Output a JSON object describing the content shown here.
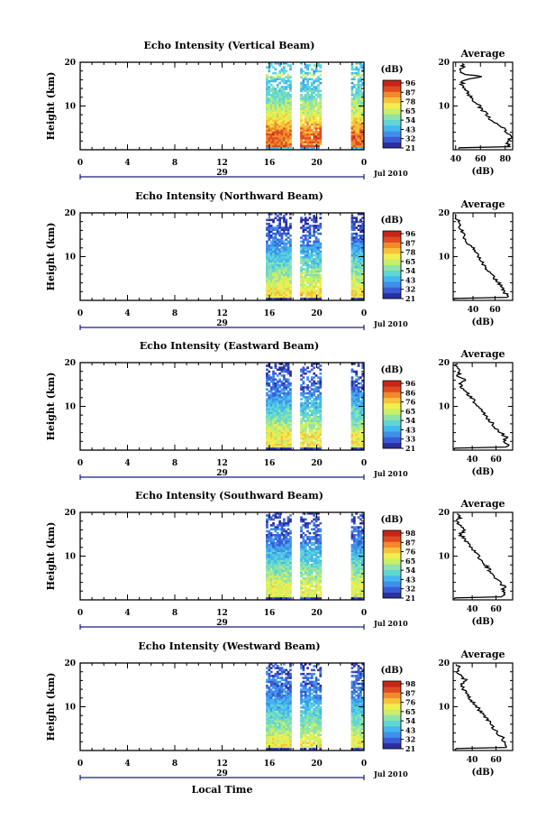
{
  "figure": {
    "xlabel": "Local Time",
    "date_label": "Jul 2010",
    "day_label": "29",
    "avg_title": "Average",
    "avg_xlabel": "(dB)",
    "cbar_unit": "(dB)",
    "ylabel": "Height (km)"
  },
  "colors": {
    "scale": [
      "#2b2fa0",
      "#3b5bd6",
      "#3f8fe8",
      "#45b7ee",
      "#5fd6d6",
      "#8fe3a8",
      "#c8ef6a",
      "#f2ee4e",
      "#f6c23c",
      "#f08a2c",
      "#e04a22",
      "#c82418"
    ],
    "axis": "#000000",
    "time_axis": "#1b1f7a"
  },
  "chart_data": [
    {
      "type": "heatmap",
      "title": "Echo Intensity (Vertical Beam)",
      "xlim": [
        0,
        24
      ],
      "ylim": [
        0,
        20
      ],
      "x_ticks": [
        "0",
        "4",
        "8",
        "12",
        "16",
        "20",
        "0"
      ],
      "y_ticks": [
        "20",
        "10"
      ],
      "colorbar": {
        "ticks": [
          "96",
          "87",
          "78",
          "65",
          "54",
          "43",
          "32",
          "21"
        ],
        "range": [
          21,
          96
        ]
      },
      "data_periods": [
        [
          15.7,
          17.8
        ],
        [
          18.6,
          20.3
        ],
        [
          22.9,
          23.8
        ]
      ],
      "profile_by_height": [
        {
          "h": 0.5,
          "v": 88
        },
        {
          "h": 1,
          "v": 82
        },
        {
          "h": 2,
          "v": 82
        },
        {
          "h": 3,
          "v": 85
        },
        {
          "h": 4,
          "v": 80
        },
        {
          "h": 5,
          "v": 78
        },
        {
          "h": 6,
          "v": 72
        },
        {
          "h": 7,
          "v": 68
        },
        {
          "h": 8,
          "v": 65
        },
        {
          "h": 9,
          "v": 62
        },
        {
          "h": 10,
          "v": 59
        },
        {
          "h": 11,
          "v": 55
        },
        {
          "h": 12,
          "v": 52
        },
        {
          "h": 13,
          "v": 50
        },
        {
          "h": 14,
          "v": 48
        },
        {
          "h": 15,
          "v": 45
        },
        {
          "h": 16,
          "v": 47
        },
        {
          "h": 16.8,
          "v": 62
        },
        {
          "h": 17.2,
          "v": 48
        },
        {
          "h": 18,
          "v": 44
        },
        {
          "h": 19,
          "v": 46
        },
        {
          "h": 20,
          "v": 44
        }
      ],
      "average": {
        "xlim": [
          38,
          86
        ],
        "xticks": [
          "40",
          "60",
          "80"
        ],
        "heights": [
          0.5,
          1,
          2,
          3,
          4,
          5,
          6,
          7,
          8,
          9,
          10,
          11,
          12,
          13,
          14,
          15,
          16,
          16.8,
          17.2,
          18,
          19,
          20
        ],
        "values": [
          88,
          82,
          82,
          85,
          80,
          78,
          72,
          68,
          65,
          62,
          59,
          55,
          52,
          50,
          48,
          45,
          47,
          62,
          48,
          44,
          46,
          44
        ]
      }
    },
    {
      "type": "heatmap",
      "title": "Echo Intensity (Northward Beam)",
      "xlim": [
        0,
        24
      ],
      "ylim": [
        0,
        20
      ],
      "x_ticks": [
        "0",
        "4",
        "8",
        "12",
        "16",
        "20",
        "0"
      ],
      "y_ticks": [
        "20",
        "10"
      ],
      "colorbar": {
        "ticks": [
          "96",
          "87",
          "78",
          "65",
          "54",
          "43",
          "32",
          "21"
        ],
        "range": [
          21,
          96
        ]
      },
      "data_periods": [
        [
          15.7,
          17.8
        ],
        [
          18.6,
          20.3
        ],
        [
          22.9,
          23.8
        ]
      ],
      "profile_by_height": [
        {
          "h": 0.5,
          "v": 70
        },
        {
          "h": 1,
          "v": 72
        },
        {
          "h": 2,
          "v": 68
        },
        {
          "h": 3,
          "v": 66
        },
        {
          "h": 4,
          "v": 63
        },
        {
          "h": 5,
          "v": 60
        },
        {
          "h": 6,
          "v": 56
        },
        {
          "h": 7,
          "v": 53
        },
        {
          "h": 8,
          "v": 50
        },
        {
          "h": 9,
          "v": 48
        },
        {
          "h": 10,
          "v": 45
        },
        {
          "h": 11,
          "v": 42
        },
        {
          "h": 12,
          "v": 40
        },
        {
          "h": 13,
          "v": 36
        },
        {
          "h": 14,
          "v": 33
        },
        {
          "h": 15,
          "v": 31
        },
        {
          "h": 16,
          "v": 30
        },
        {
          "h": 17,
          "v": 28
        },
        {
          "h": 18,
          "v": 27
        },
        {
          "h": 19,
          "v": 25
        },
        {
          "h": 20,
          "v": 24
        }
      ],
      "average": {
        "xlim": [
          22,
          76
        ],
        "xticks": [
          "40",
          "60"
        ],
        "heights": [
          0.5,
          1,
          2,
          3,
          4,
          5,
          6,
          7,
          8,
          9,
          10,
          11,
          12,
          13,
          14,
          15,
          16,
          17,
          18,
          19,
          20
        ],
        "values": [
          70,
          72,
          68,
          66,
          63,
          60,
          56,
          53,
          50,
          48,
          45,
          42,
          40,
          36,
          33,
          31,
          30,
          28,
          27,
          25,
          24
        ]
      }
    },
    {
      "type": "heatmap",
      "title": "Echo Intensity (Eastward Beam)",
      "xlim": [
        0,
        24
      ],
      "ylim": [
        0,
        20
      ],
      "x_ticks": [
        "0",
        "4",
        "8",
        "12",
        "16",
        "20",
        "0"
      ],
      "y_ticks": [
        "20",
        "10"
      ],
      "colorbar": {
        "ticks": [
          "96",
          "86",
          "76",
          "65",
          "54",
          "43",
          "33",
          "21"
        ],
        "range": [
          21,
          96
        ]
      },
      "data_periods": [
        [
          15.7,
          17.8
        ],
        [
          18.6,
          20.3
        ],
        [
          22.9,
          23.8
        ]
      ],
      "profile_by_height": [
        {
          "h": 0.5,
          "v": 64
        },
        {
          "h": 1,
          "v": 70
        },
        {
          "h": 2,
          "v": 66
        },
        {
          "h": 3,
          "v": 69
        },
        {
          "h": 4,
          "v": 64
        },
        {
          "h": 5,
          "v": 60
        },
        {
          "h": 6,
          "v": 57
        },
        {
          "h": 7,
          "v": 54
        },
        {
          "h": 8,
          "v": 51
        },
        {
          "h": 9,
          "v": 48
        },
        {
          "h": 10,
          "v": 45
        },
        {
          "h": 11,
          "v": 42
        },
        {
          "h": 12,
          "v": 39
        },
        {
          "h": 13,
          "v": 36
        },
        {
          "h": 14,
          "v": 32
        },
        {
          "h": 15,
          "v": 30
        },
        {
          "h": 16,
          "v": 34
        },
        {
          "h": 17,
          "v": 28
        },
        {
          "h": 18,
          "v": 30
        },
        {
          "h": 19,
          "v": 27
        },
        {
          "h": 20,
          "v": 26
        }
      ],
      "average": {
        "xlim": [
          24,
          74
        ],
        "xticks": [
          "40",
          "60"
        ],
        "heights": [
          0.5,
          1,
          2,
          3,
          4,
          5,
          6,
          7,
          8,
          9,
          10,
          11,
          12,
          13,
          14,
          15,
          16,
          17,
          18,
          19,
          20
        ],
        "values": [
          64,
          70,
          66,
          69,
          64,
          60,
          57,
          54,
          51,
          48,
          45,
          42,
          39,
          36,
          32,
          30,
          34,
          28,
          30,
          27,
          26
        ]
      }
    },
    {
      "type": "heatmap",
      "title": "Echo Intensity (Southward Beam)",
      "xlim": [
        0,
        24
      ],
      "ylim": [
        0,
        20
      ],
      "x_ticks": [
        "0",
        "4",
        "8",
        "12",
        "16",
        "20",
        "0"
      ],
      "y_ticks": [
        "20",
        "10"
      ],
      "colorbar": {
        "ticks": [
          "98",
          "87",
          "76",
          "65",
          "54",
          "43",
          "32",
          "21"
        ],
        "range": [
          21,
          98
        ]
      },
      "data_periods": [
        [
          15.7,
          17.8
        ],
        [
          18.6,
          20.3
        ],
        [
          22.9,
          23.8
        ]
      ],
      "profile_by_height": [
        {
          "h": 0.5,
          "v": 63
        },
        {
          "h": 1,
          "v": 68
        },
        {
          "h": 2,
          "v": 65
        },
        {
          "h": 3,
          "v": 67
        },
        {
          "h": 4,
          "v": 63
        },
        {
          "h": 5,
          "v": 60
        },
        {
          "h": 6,
          "v": 57
        },
        {
          "h": 7,
          "v": 54
        },
        {
          "h": 8,
          "v": 51
        },
        {
          "h": 9,
          "v": 48
        },
        {
          "h": 10,
          "v": 45
        },
        {
          "h": 11,
          "v": 42
        },
        {
          "h": 12,
          "v": 39
        },
        {
          "h": 13,
          "v": 36
        },
        {
          "h": 14,
          "v": 33
        },
        {
          "h": 15,
          "v": 30
        },
        {
          "h": 16,
          "v": 34
        },
        {
          "h": 17,
          "v": 29
        },
        {
          "h": 18,
          "v": 28
        },
        {
          "h": 19,
          "v": 30
        },
        {
          "h": 20,
          "v": 26
        }
      ],
      "average": {
        "xlim": [
          24,
          74
        ],
        "xticks": [
          "40",
          "60"
        ],
        "heights": [
          0.5,
          1,
          2,
          3,
          4,
          5,
          6,
          7,
          8,
          9,
          10,
          11,
          12,
          13,
          14,
          15,
          16,
          17,
          18,
          19,
          20
        ],
        "values": [
          63,
          68,
          65,
          67,
          63,
          60,
          57,
          54,
          51,
          48,
          45,
          42,
          39,
          36,
          33,
          30,
          34,
          29,
          28,
          30,
          26
        ]
      }
    },
    {
      "type": "heatmap",
      "title": "Echo Intensity (Westward Beam)",
      "xlim": [
        0,
        24
      ],
      "ylim": [
        0,
        20
      ],
      "x_ticks": [
        "0",
        "4",
        "8",
        "12",
        "16",
        "20",
        "0"
      ],
      "y_ticks": [
        "20",
        "10"
      ],
      "colorbar": {
        "ticks": [
          "98",
          "87",
          "76",
          "65",
          "54",
          "43",
          "32",
          "21"
        ],
        "range": [
          21,
          98
        ]
      },
      "data_periods": [
        [
          15.7,
          17.8
        ],
        [
          18.6,
          20.3
        ],
        [
          22.9,
          23.8
        ]
      ],
      "profile_by_height": [
        {
          "h": 0.5,
          "v": 66
        },
        {
          "h": 1,
          "v": 70
        },
        {
          "h": 2,
          "v": 67
        },
        {
          "h": 3,
          "v": 65
        },
        {
          "h": 4,
          "v": 61
        },
        {
          "h": 5,
          "v": 58
        },
        {
          "h": 6,
          "v": 56
        },
        {
          "h": 7,
          "v": 53
        },
        {
          "h": 8,
          "v": 50
        },
        {
          "h": 9,
          "v": 47
        },
        {
          "h": 10,
          "v": 44
        },
        {
          "h": 11,
          "v": 41
        },
        {
          "h": 12,
          "v": 38
        },
        {
          "h": 13,
          "v": 36
        },
        {
          "h": 14,
          "v": 33
        },
        {
          "h": 15,
          "v": 31
        },
        {
          "h": 16,
          "v": 35
        },
        {
          "h": 17,
          "v": 30
        },
        {
          "h": 18,
          "v": 28
        },
        {
          "h": 19,
          "v": 29
        },
        {
          "h": 20,
          "v": 27
        }
      ],
      "average": {
        "xlim": [
          24,
          74
        ],
        "xticks": [
          "40",
          "60"
        ],
        "heights": [
          0.5,
          1,
          2,
          3,
          4,
          5,
          6,
          7,
          8,
          9,
          10,
          11,
          12,
          13,
          14,
          15,
          16,
          17,
          18,
          19,
          20
        ],
        "values": [
          66,
          70,
          67,
          65,
          61,
          58,
          56,
          53,
          50,
          47,
          44,
          41,
          38,
          36,
          33,
          31,
          35,
          30,
          28,
          29,
          27
        ]
      }
    }
  ]
}
